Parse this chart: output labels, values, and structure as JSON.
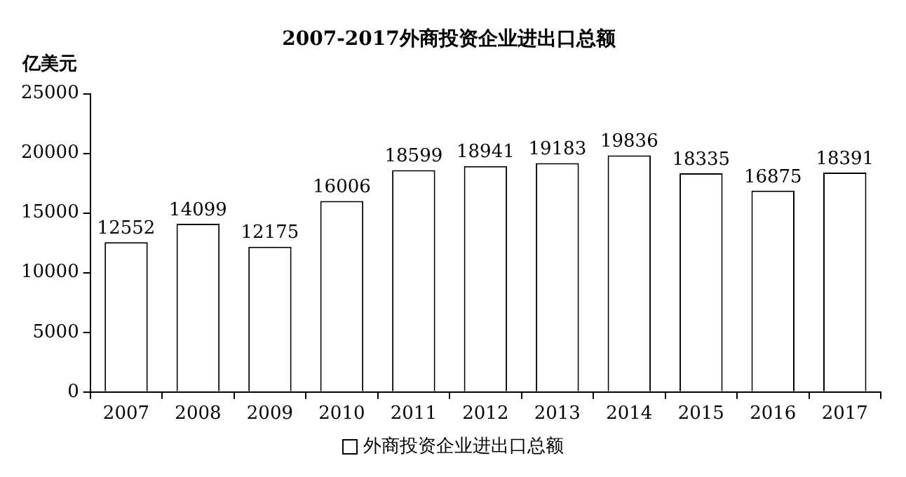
{
  "chart_data": {
    "type": "bar",
    "title": "2007-2017外商投资企业进出口总额",
    "ylabel": "亿美元",
    "categories": [
      "2007",
      "2008",
      "2009",
      "2010",
      "2011",
      "2012",
      "2013",
      "2014",
      "2015",
      "2016",
      "2017"
    ],
    "series": [
      {
        "name": "外商投资企业进出口总额",
        "color": "#ffffff",
        "values": [
          12552,
          14099,
          12175,
          16006,
          18599,
          18941,
          19183,
          19836,
          18335,
          16875,
          18391
        ]
      }
    ],
    "ylim": [
      0,
      25000
    ],
    "yticks": [
      0,
      5000,
      10000,
      15000,
      20000,
      25000
    ],
    "grid": false,
    "legend": "bottom",
    "data_labels": true
  }
}
